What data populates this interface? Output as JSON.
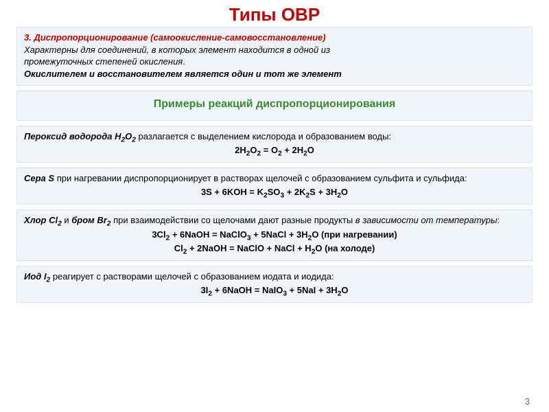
{
  "title": {
    "text": "Типы ОВР",
    "color": "#c00000"
  },
  "intro": {
    "heading": "3. Диспропорционирование (самоокисление-самовосстановление)",
    "heading_color": "#c00000",
    "body_line1": "Характерны для соединений, в которых элемент находится в одной из",
    "body_line2_a": "промежуточных степеней окисления",
    "body_line2_b": ".",
    "em_line": "Окислителем и восстановителем является один и тот же элемент",
    "body_color": "#3b3b3b"
  },
  "subheader": {
    "text": "Примеры реакций диспропорционирования",
    "color": "#3a8a2f"
  },
  "box1": {
    "lead_a": "Пероксид водорода",
    "lead_formula": "H₂O₂",
    "tail": " разлагается с выделением кислорода и образованием воды:",
    "eq": "2H₂O₂ = O₂ + 2H₂O"
  },
  "box2": {
    "lead_a": "Сера",
    "lead_formula": "S",
    "tail": " при нагревании диспропорционирует в растворах щелочей с образованием сульфита и сульфида:",
    "eq": "3S + 6KOH = K₂SO₃ + 2K₂S + 3H₂O"
  },
  "box3": {
    "lead_a": "Хлор",
    "lead_formula_a": "Cl₂",
    "mid": " и ",
    "lead_b": "бром",
    "lead_formula_b": "Br₂",
    "tail_a": " при взаимодействии со щелочами дают разные продукты ",
    "tail_b": "в зависимости от температуры",
    "tail_c": ":",
    "eq1": "3Cl₂ + 6NaOH = NaClO₃ + 5NaCl + 3H₂O (при нагревании)",
    "eq2": "Cl₂ + 2NaOH = NaClO + NaCl + H₂O (на холоде)"
  },
  "box4": {
    "lead_a": "Иод",
    "lead_formula": "I₂",
    "tail": " реагирует с растворами щелочей с образованием иодата и иодида:",
    "eq": "3I₂ + 6NaOH = NaIO₃ + 5NaI + 3H₂O"
  },
  "page_number": "3",
  "colors": {
    "box_bg": "#eff5f9",
    "box_border": "#d8e3ea",
    "text": "#1a1a1a"
  }
}
